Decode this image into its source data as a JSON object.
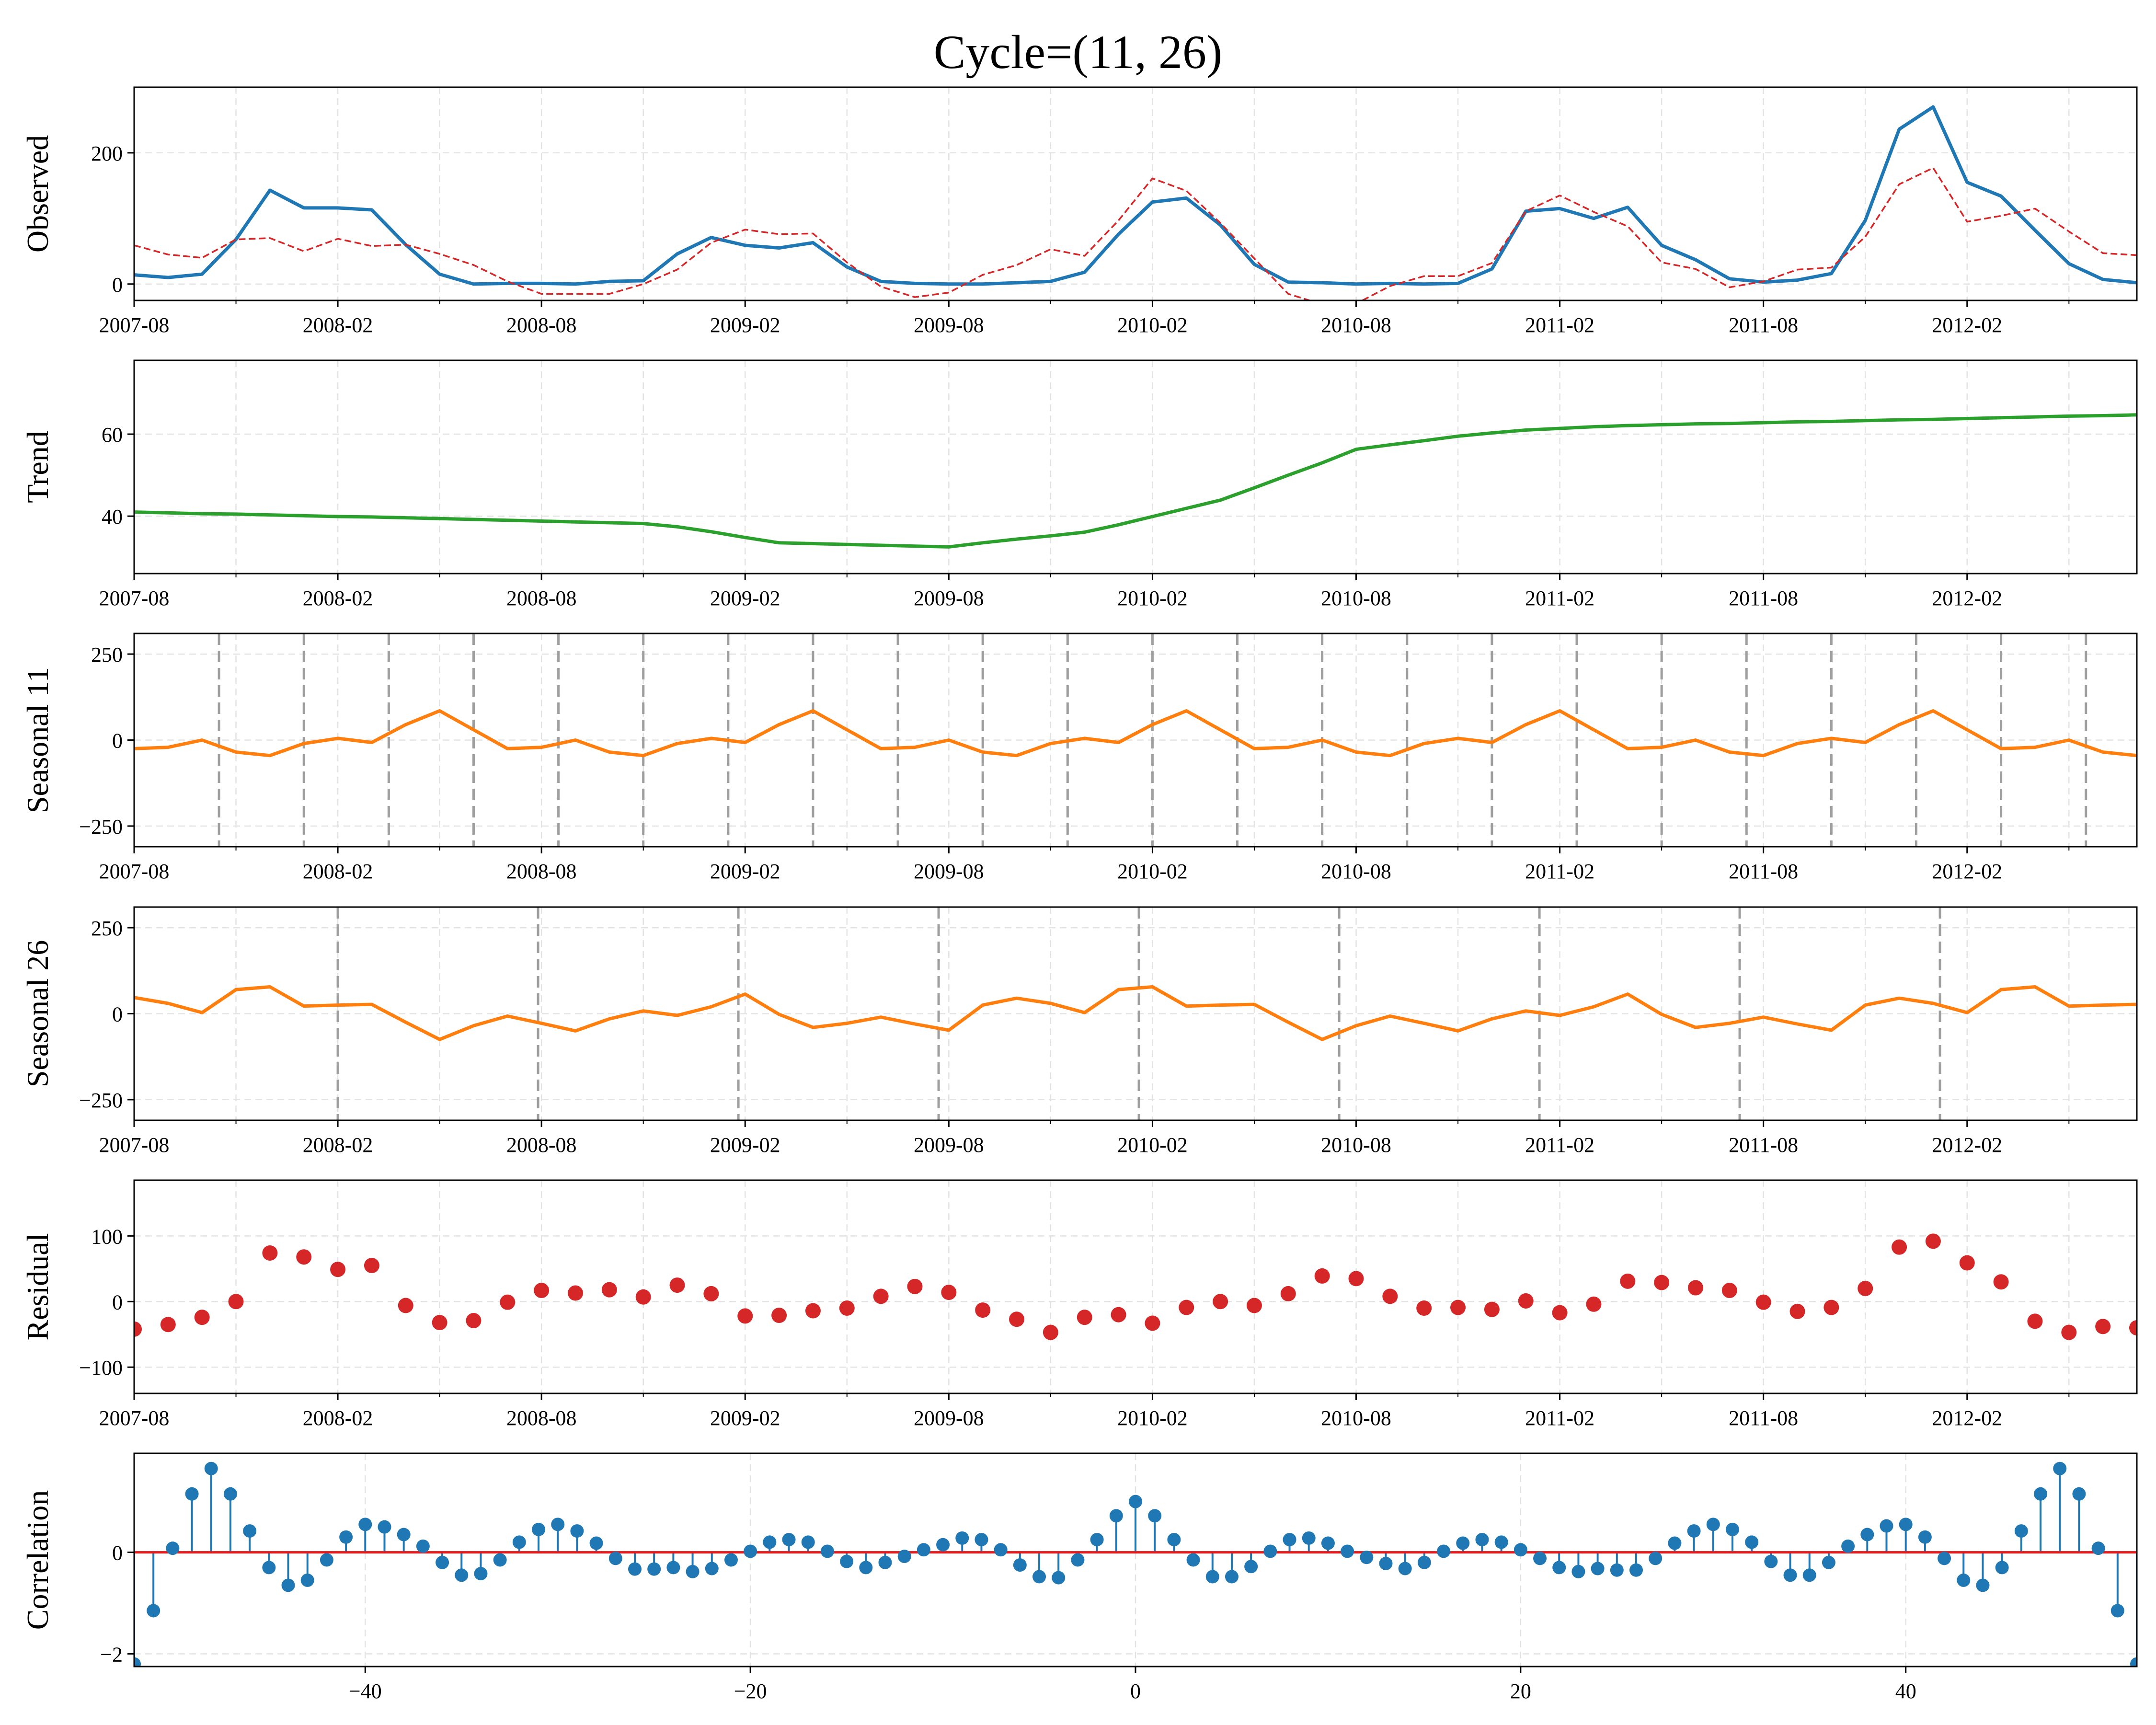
{
  "chart_data": {
    "type": "line",
    "title": "Cycle=(11, 26)",
    "x_tick_labels": [
      "2007-08",
      "2008-02",
      "2008-08",
      "2009-02",
      "2009-08",
      "2010-02",
      "2010-08",
      "2011-02",
      "2011-08",
      "2012-02"
    ],
    "x_tick_indices": [
      0,
      6,
      12,
      18,
      24,
      30,
      36,
      42,
      48,
      54
    ],
    "n_points": 60,
    "panels": [
      {
        "ylabel": "Observed",
        "ylim": [
          -25,
          300
        ],
        "yticks": [
          0,
          200
        ],
        "series": [
          {
            "color": "#1f77b4",
            "style": "solid",
            "values": [
              14,
              10,
              15,
              68,
              143,
              116,
              116,
              113,
              60,
              15,
              0,
              1,
              1,
              0,
              4,
              5,
              46,
              71,
              59,
              55,
              63,
              26,
              4,
              1,
              0,
              0,
              2,
              4,
              18,
              76,
              125,
              131,
              90,
              30,
              3,
              2,
              0,
              1,
              0,
              1,
              23,
              111,
              115,
              100,
              117,
              59,
              37,
              8,
              3,
              6,
              16,
              97,
              236,
              270,
              155,
              134,
              82,
              31,
              7,
              2
            ]
          },
          {
            "color": "#d62728",
            "style": "dashed",
            "values": [
              59,
              45,
              40,
              68,
              70,
              50,
              69,
              58,
              60,
              46,
              29,
              4,
              -15,
              -15,
              -15,
              0,
              22,
              63,
              83,
              76,
              77,
              33,
              -4,
              -20,
              -13,
              14,
              29,
              53,
              43,
              97,
              161,
              142,
              93,
              39,
              -15,
              -31,
              -30,
              -3,
              12,
              12,
              32,
              111,
              135,
              110,
              88,
              33,
              23,
              -5,
              4,
              22,
              25,
              72,
              152,
              177,
              95,
              104,
              115,
              80,
              47,
              44
            ]
          }
        ]
      },
      {
        "ylabel": "Trend",
        "ylim": [
          26,
          78
        ],
        "yticks": [
          40,
          60
        ],
        "series": [
          {
            "color": "#2ca02c",
            "style": "solid",
            "values": [
              41.0,
              40.8,
              40.6,
              40.5,
              40.3,
              40.1,
              39.9,
              39.8,
              39.6,
              39.4,
              39.2,
              39.0,
              38.8,
              38.6,
              38.4,
              38.2,
              37.4,
              36.2,
              34.8,
              33.5,
              33.3,
              33.1,
              32.9,
              32.7,
              32.5,
              33.5,
              34.4,
              35.2,
              36.1,
              37.9,
              39.9,
              41.9,
              43.9,
              46.9,
              50.0,
              53.0,
              56.3,
              57.4,
              58.4,
              59.5,
              60.3,
              61.0,
              61.4,
              61.8,
              62.1,
              62.3,
              62.5,
              62.6,
              62.8,
              63.0,
              63.1,
              63.3,
              63.5,
              63.6,
              63.8,
              64.0,
              64.2,
              64.4,
              64.5,
              64.7
            ]
          }
        ]
      },
      {
        "ylabel": "Seasonal 11",
        "ylim": [
          -310,
          310
        ],
        "yticks": [
          -250,
          0,
          250
        ],
        "series": [
          {
            "color": "#ff7f0e",
            "style": "solid",
            "values": [
              -25,
              -21,
              0,
              -35,
              -45,
              -10,
              5,
              -7,
              45,
              85,
              30,
              -25,
              -21,
              0,
              -35,
              -45,
              -10,
              5,
              -7,
              45,
              85,
              30,
              -25,
              -21,
              0,
              -35,
              -45,
              -10,
              5,
              -7,
              45,
              85,
              30,
              -25,
              -21,
              0,
              -35,
              -45,
              -10,
              5,
              -7,
              45,
              85,
              30,
              -25,
              -21,
              0,
              -35,
              -45,
              -10,
              5,
              -7,
              45,
              85,
              30,
              -25,
              -21,
              0,
              -35,
              -45
            ]
          }
        ]
      },
      {
        "ylabel": "Seasonal 26",
        "ylim": [
          -310,
          310
        ],
        "yticks": [
          -250,
          0,
          250
        ],
        "series": [
          {
            "color": "#ff7f0e",
            "style": "solid",
            "values": [
              47,
              30,
              3,
              70,
              78,
              22,
              25,
              27,
              -25,
              -75,
              -35,
              -7,
              -28,
              -50,
              -15,
              8,
              -5,
              20,
              57,
              -2,
              -40,
              -28,
              -10,
              -30,
              -48,
              25,
              45,
              30,
              3,
              70,
              78,
              22,
              25,
              27,
              -25,
              -75,
              -35,
              -7,
              -28,
              -50,
              -15,
              8,
              -5,
              20,
              57,
              -2,
              -40,
              -28,
              -10,
              -30,
              -48,
              25,
              45,
              30,
              3,
              70,
              78,
              22,
              25,
              27
            ]
          }
        ]
      },
      {
        "ylabel": "Residual",
        "ylim": [
          -140,
          185
        ],
        "yticks": [
          -100,
          0,
          100
        ],
        "series": [
          {
            "color": "#d62728",
            "style": "markers",
            "values": [
              -42,
              -35,
              -24,
              0,
              74,
              68,
              49,
              55,
              -6,
              -32,
              -29,
              -1,
              17,
              13,
              18,
              7,
              25,
              12,
              -22,
              -21,
              -14,
              -10,
              8,
              23,
              14,
              -13,
              -27,
              -47,
              -24,
              -20,
              -33,
              -9,
              0,
              -6,
              12,
              39,
              35,
              8,
              -10,
              -9,
              -12,
              1,
              -17,
              -4,
              31,
              29,
              21,
              17,
              -1,
              -15,
              -9,
              20,
              83,
              92,
              59,
              30,
              -30,
              -47,
              -38,
              -40
            ]
          }
        ]
      },
      {
        "ylabel": "Correlation",
        "ylim": [
          -2.25,
          1.95
        ],
        "yticks": [
          -2,
          0
        ],
        "x_tick_values": [
          -40,
          -20,
          0,
          20,
          40
        ],
        "xlim": [
          -52,
          52
        ],
        "lags_start": -52,
        "series": [
          {
            "color": "#1f77b4",
            "style": "stem",
            "values": [
              -2.2,
              -1.15,
              0.08,
              1.15,
              1.65,
              1.15,
              0.42,
              -0.3,
              -0.65,
              -0.55,
              -0.15,
              0.3,
              0.55,
              0.5,
              0.35,
              0.12,
              -0.2,
              -0.45,
              -0.42,
              -0.15,
              0.2,
              0.45,
              0.55,
              0.42,
              0.18,
              -0.12,
              -0.33,
              -0.33,
              -0.3,
              -0.38,
              -0.32,
              -0.15,
              0.02,
              0.2,
              0.25,
              0.2,
              0.02,
              -0.18,
              -0.3,
              -0.2,
              -0.08,
              0.05,
              0.15,
              0.28,
              0.25,
              0.05,
              -0.25,
              -0.48,
              -0.5,
              -0.15,
              0.25,
              0.72,
              1.0,
              0.72,
              0.25,
              -0.15,
              -0.48,
              -0.48,
              -0.28,
              0.02,
              0.25,
              0.28,
              0.18,
              0.02,
              -0.1,
              -0.22,
              -0.32,
              -0.2,
              0.02,
              0.18,
              0.25,
              0.2,
              0.05,
              -0.12,
              -0.3,
              -0.38,
              -0.32,
              -0.35,
              -0.35,
              -0.12,
              0.18,
              0.42,
              0.55,
              0.45,
              0.2,
              -0.18,
              -0.45,
              -0.45,
              -0.2,
              0.12,
              0.35,
              0.52,
              0.55,
              0.3,
              -0.12,
              -0.55,
              -0.65,
              -0.3,
              0.42,
              1.15,
              1.65,
              1.15,
              0.08,
              -1.15,
              -2.2
            ]
          }
        ]
      }
    ]
  }
}
